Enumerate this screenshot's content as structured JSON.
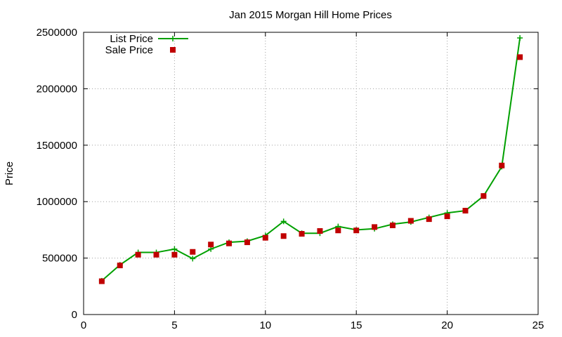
{
  "chart_data": {
    "type": "line",
    "title": "Jan 2015 Morgan Hill Home Prices",
    "xlabel": "",
    "ylabel": "Price",
    "xlim": [
      0,
      25
    ],
    "ylim": [
      0,
      2500000
    ],
    "xticks": [
      0,
      5,
      10,
      15,
      20,
      25
    ],
    "yticks": [
      0,
      500000,
      1000000,
      1500000,
      2000000,
      2500000
    ],
    "grid": true,
    "legend_position": "top-left",
    "series": [
      {
        "name": "List Price",
        "style": "line-plus",
        "color": "#00a000",
        "x": [
          1,
          2,
          3,
          4,
          5,
          6,
          7,
          8,
          9,
          10,
          11,
          12,
          13,
          14,
          15,
          16,
          17,
          18,
          19,
          20,
          21,
          22,
          23,
          24
        ],
        "y": [
          299000,
          440000,
          550000,
          550000,
          580000,
          495000,
          580000,
          640000,
          650000,
          700000,
          825000,
          720000,
          720000,
          780000,
          750000,
          760000,
          800000,
          820000,
          860000,
          900000,
          920000,
          1050000,
          1310000,
          2450000
        ]
      },
      {
        "name": "Sale Price",
        "style": "square-markers",
        "color": "#c00000",
        "x": [
          1,
          2,
          3,
          4,
          5,
          6,
          7,
          8,
          9,
          10,
          11,
          12,
          13,
          14,
          15,
          16,
          17,
          18,
          19,
          20,
          21,
          22,
          23,
          24
        ],
        "y": [
          295000,
          435000,
          530000,
          530000,
          530000,
          555000,
          620000,
          630000,
          640000,
          680000,
          695000,
          715000,
          740000,
          745000,
          745000,
          775000,
          790000,
          830000,
          845000,
          870000,
          920000,
          1050000,
          1320000,
          2280000
        ]
      }
    ]
  }
}
